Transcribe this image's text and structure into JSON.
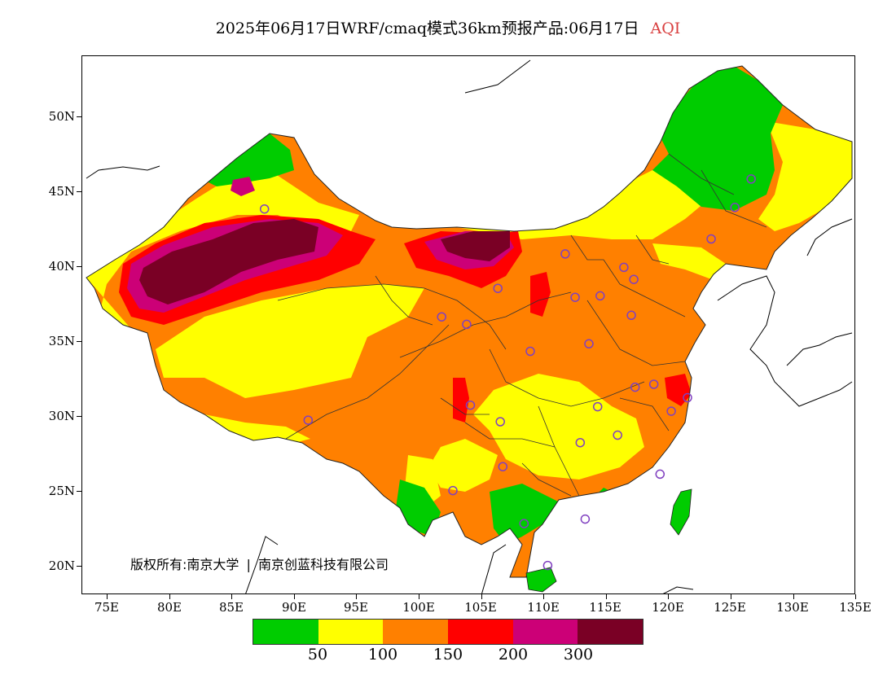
{
  "title": {
    "main": "2025年06月17日WRF/cmaq模式36km预报产品:06月17日",
    "variable": "AQI"
  },
  "axes": {
    "lat_labels": [
      "50N",
      "45N",
      "40N",
      "35N",
      "30N",
      "25N",
      "20N"
    ],
    "lon_labels": [
      "75E",
      "80E",
      "85E",
      "90E",
      "95E",
      "100E",
      "105E",
      "110E",
      "115E",
      "120E",
      "125E",
      "130E",
      "135E"
    ],
    "lon_range": [
      73,
      135
    ],
    "lat_range": [
      18,
      54
    ]
  },
  "copyright": {
    "text": "版权所有:南京大学",
    "separator": "|",
    "company": "南京创蓝科技有限公司"
  },
  "legend": {
    "colors": [
      "#00cc00",
      "#ffff00",
      "#ff8000",
      "#ff0000",
      "#cc0077",
      "#7a0025"
    ],
    "labels": [
      "50",
      "100",
      "150",
      "200",
      "300"
    ]
  },
  "colors": {
    "border": "#333333",
    "station_marker": "#8040c0"
  },
  "stations": [
    [
      87.6,
      43.8
    ],
    [
      91.1,
      29.7
    ],
    [
      101.8,
      36.6
    ],
    [
      103.8,
      36.1
    ],
    [
      106.3,
      38.5
    ],
    [
      111.7,
      40.8
    ],
    [
      112.5,
      37.9
    ],
    [
      114.5,
      38.0
    ],
    [
      116.4,
      39.9
    ],
    [
      117.2,
      39.1
    ],
    [
      117.0,
      36.7
    ],
    [
      113.6,
      34.8
    ],
    [
      108.9,
      34.3
    ],
    [
      104.1,
      30.7
    ],
    [
      106.5,
      29.6
    ],
    [
      106.7,
      26.6
    ],
    [
      102.7,
      25.0
    ],
    [
      108.4,
      22.8
    ],
    [
      113.3,
      23.1
    ],
    [
      110.3,
      20.0
    ],
    [
      112.9,
      28.2
    ],
    [
      114.3,
      30.6
    ],
    [
      115.9,
      28.7
    ],
    [
      117.3,
      31.9
    ],
    [
      118.8,
      32.1
    ],
    [
      120.2,
      30.3
    ],
    [
      121.5,
      31.2
    ],
    [
      119.3,
      26.1
    ],
    [
      123.4,
      41.8
    ],
    [
      125.3,
      43.9
    ],
    [
      126.6,
      45.8
    ]
  ]
}
